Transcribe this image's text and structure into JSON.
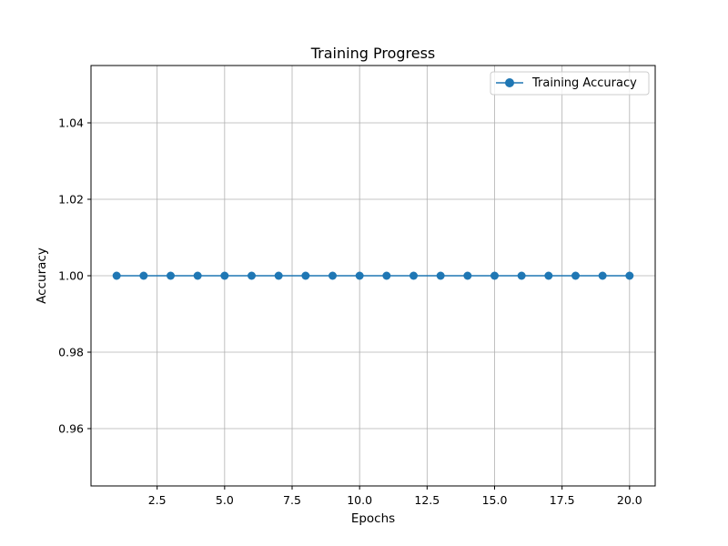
{
  "chart_data": {
    "type": "line",
    "title": "Training Progress",
    "xlabel": "Epochs",
    "ylabel": "Accuracy",
    "xlim": [
      0.05,
      20.95
    ],
    "ylim": [
      0.945,
      1.055
    ],
    "xticks": [
      2.5,
      5.0,
      7.5,
      10.0,
      12.5,
      15.0,
      17.5,
      20.0
    ],
    "xtick_labels": [
      "2.5",
      "5.0",
      "7.5",
      "10.0",
      "12.5",
      "15.0",
      "17.5",
      "20.0"
    ],
    "yticks": [
      0.96,
      0.98,
      1.0,
      1.02,
      1.04
    ],
    "ytick_labels": [
      "0.96",
      "0.98",
      "1.00",
      "1.02",
      "1.04"
    ],
    "grid": true,
    "legend_position": "top-right",
    "series": [
      {
        "name": "Training Accuracy",
        "color": "#1f77b4",
        "marker": "circle",
        "x": [
          1,
          2,
          3,
          4,
          5,
          6,
          7,
          8,
          9,
          10,
          11,
          12,
          13,
          14,
          15,
          16,
          17,
          18,
          19,
          20
        ],
        "y": [
          1.0,
          1.0,
          1.0,
          1.0,
          1.0,
          1.0,
          1.0,
          1.0,
          1.0,
          1.0,
          1.0,
          1.0,
          1.0,
          1.0,
          1.0,
          1.0,
          1.0,
          1.0,
          1.0,
          1.0
        ]
      }
    ]
  }
}
